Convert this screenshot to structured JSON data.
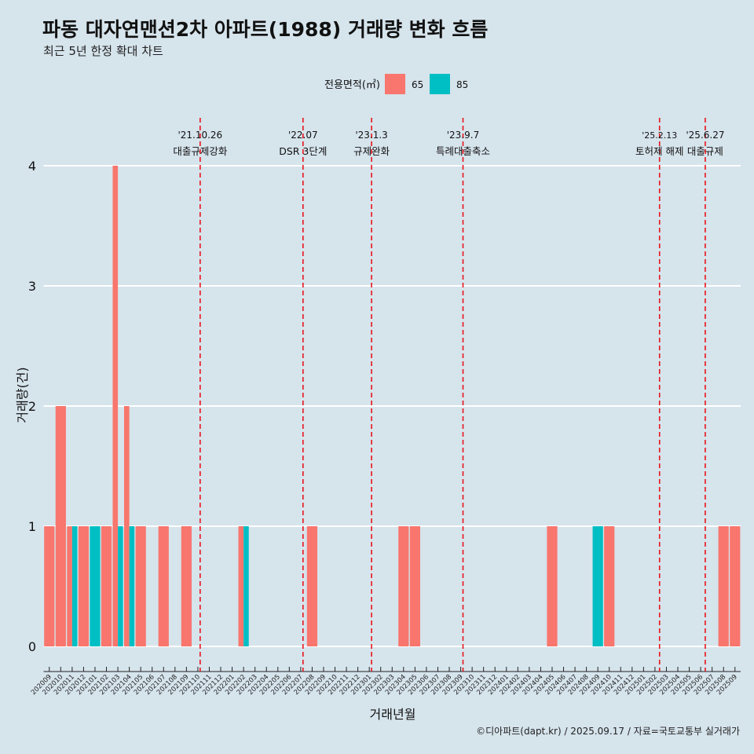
{
  "title": "파동 대자연맨션2차 아파트(1988) 거래량 변화 흐름",
  "subtitle": "최근 5년 한정 확대 차트",
  "caption": "©디아파트(dapt.kr) / 2025.09.17 / 자료=국토교통부 실거래가",
  "chart_data": {
    "type": "bar",
    "xlabel": "거래년월",
    "ylabel": "거래량(건)",
    "ylim": [
      0,
      4
    ],
    "yticks": [
      0,
      1,
      2,
      3,
      4
    ],
    "legend": {
      "title": "전용면적(㎡)",
      "placement": "top",
      "entries": [
        {
          "label": "65",
          "color": "#F8766D"
        },
        {
          "label": "85",
          "color": "#00BFC4"
        }
      ]
    },
    "categories": [
      "202009",
      "202010",
      "202011",
      "202012",
      "202101",
      "202102",
      "202103",
      "202104",
      "202105",
      "202106",
      "202107",
      "202108",
      "202109",
      "202110",
      "202111",
      "202112",
      "202201",
      "202202",
      "202203",
      "202204",
      "202205",
      "202206",
      "202207",
      "202208",
      "202209",
      "202210",
      "202211",
      "202212",
      "202301",
      "202302",
      "202303",
      "202304",
      "202305",
      "202306",
      "202307",
      "202308",
      "202309",
      "202310",
      "202311",
      "202312",
      "202401",
      "202402",
      "202403",
      "202404",
      "202405",
      "202406",
      "202407",
      "202408",
      "202409",
      "202410",
      "202411",
      "202412",
      "202501",
      "202502",
      "202503",
      "202504",
      "202505",
      "202506",
      "202507",
      "202508",
      "202509"
    ],
    "series": [
      {
        "name": "65",
        "color": "#F8766D",
        "values": [
          1,
          2,
          0.5,
          1,
          0,
          1,
          4,
          2,
          1,
          0,
          1,
          0,
          1,
          0,
          0,
          0,
          0,
          0.5,
          0,
          0,
          0,
          0,
          0,
          1,
          0,
          0,
          0,
          0,
          0,
          0,
          0,
          1,
          1,
          0,
          0,
          0,
          0,
          0,
          0,
          0,
          0,
          0,
          0,
          0,
          1,
          0,
          0,
          0,
          0,
          1,
          0,
          0,
          0,
          0,
          0,
          0,
          0,
          0,
          0,
          1,
          1
        ]
      },
      {
        "name": "85",
        "color": "#00BFC4",
        "values": [
          0,
          0,
          0.5,
          0,
          1,
          0,
          1,
          1,
          0,
          0,
          0,
          0,
          0,
          0,
          0,
          0,
          0,
          0.5,
          0,
          0,
          0,
          0,
          0,
          0,
          0,
          0,
          0,
          0,
          0,
          0,
          0,
          0,
          0,
          0,
          0,
          0,
          0,
          0,
          0,
          0,
          0,
          0,
          0,
          0,
          0,
          0,
          0,
          0,
          1,
          0,
          0,
          0,
          0,
          0,
          0,
          0,
          0,
          0,
          0,
          0,
          0
        ]
      }
    ],
    "annotations": [
      {
        "date": "'21.10.26",
        "label": "대출규제강화",
        "pos": 13.2
      },
      {
        "date": "'22.07",
        "label": "DSR 3단계",
        "pos": 22.2
      },
      {
        "date": "'23.1.3",
        "label": "규제완화",
        "pos": 28.2
      },
      {
        "date": "'23.9.7",
        "label": "특례대출축소",
        "pos": 36.2
      },
      {
        "date": "'25.2.13",
        "label": "토허제 해제",
        "pos": 53.4
      },
      {
        "date": "'25.6.27",
        "label": "대출규제",
        "pos": 57.4
      }
    ]
  }
}
